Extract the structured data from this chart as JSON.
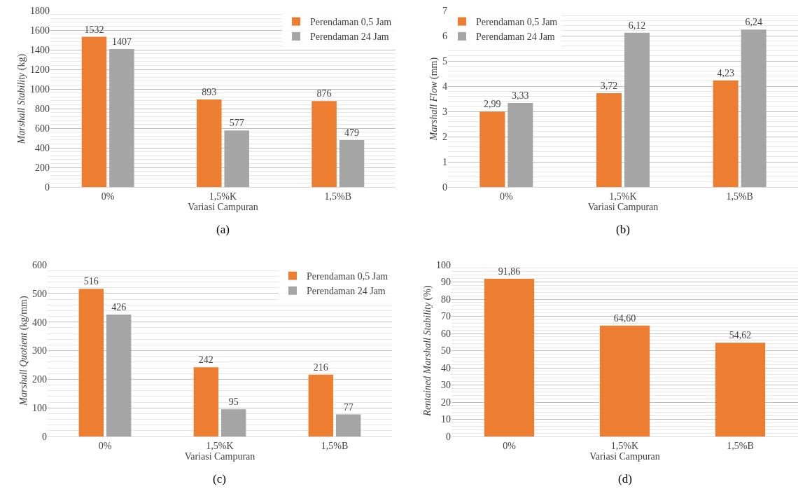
{
  "chart_data": [
    {
      "type": "bar",
      "categories": [
        "0%",
        "1,5%K",
        "1,5%B"
      ],
      "xlabel": "Variasi Campuran",
      "ylabel": "Marshall Stability (kg)",
      "annotations": [
        "(a)"
      ],
      "ylim": [
        0,
        1800
      ],
      "yticks": [
        0,
        200,
        400,
        600,
        800,
        1000,
        1200,
        1400,
        1600,
        1800
      ],
      "grid": "y",
      "legend": "top right",
      "series": [
        {
          "name": "Perendaman 0,5 Jam",
          "color": "#ed7d31",
          "values": [
            1532,
            893,
            876
          ],
          "value_labels": [
            "1532",
            "893",
            "876"
          ]
        },
        {
          "name": "Perendaman 24 Jam",
          "color": "#a5a5a5",
          "values": [
            1407,
            577,
            479
          ],
          "value_labels": [
            "1407",
            "577",
            "479"
          ]
        }
      ]
    },
    {
      "type": "bar",
      "categories": [
        "0%",
        "1,5%K",
        "1,5%B"
      ],
      "xlabel": "Variasi Campuran",
      "ylabel": "Marshall Flow (mm)",
      "annotations": [
        "(b)"
      ],
      "ylim": [
        0,
        7
      ],
      "yticks": [
        0,
        1,
        2,
        3,
        4,
        5,
        6,
        7
      ],
      "grid": "y",
      "legend": "top left",
      "series": [
        {
          "name": "Perendaman 0,5 Jam",
          "color": "#ed7d31",
          "values": [
            2.99,
            3.72,
            4.23
          ],
          "value_labels": [
            "2,99",
            "3,72",
            "4,23"
          ]
        },
        {
          "name": "Perendaman 24 Jam",
          "color": "#a5a5a5",
          "values": [
            3.33,
            6.12,
            6.24
          ],
          "value_labels": [
            "3,33",
            "6,12",
            "6,24"
          ]
        }
      ]
    },
    {
      "type": "bar",
      "categories": [
        "0%",
        "1,5%K",
        "1,5%B"
      ],
      "xlabel": "Variasi Campuran",
      "ylabel": "Marshall Quotient (kg/mm)",
      "annotations": [
        "(c)"
      ],
      "ylim": [
        0,
        600
      ],
      "yticks": [
        0,
        100,
        200,
        300,
        400,
        500,
        600
      ],
      "grid": "y",
      "legend": "top right",
      "series": [
        {
          "name": "Perendaman 0,5 Jam",
          "color": "#ed7d31",
          "values": [
            516,
            242,
            216
          ],
          "value_labels": [
            "516",
            "242",
            "216"
          ]
        },
        {
          "name": "Perendaman 24 Jam",
          "color": "#a5a5a5",
          "values": [
            426,
            95,
            77
          ],
          "value_labels": [
            "426",
            "95",
            "77"
          ]
        }
      ]
    },
    {
      "type": "bar",
      "categories": [
        "0%",
        "1,5%K",
        "1,5%B"
      ],
      "xlabel": "Variasi Campuran",
      "ylabel": "Rentained Marshall Stability (%)",
      "annotations": [
        "(d)"
      ],
      "ylim": [
        0,
        100
      ],
      "yticks": [
        0,
        10,
        20,
        30,
        40,
        50,
        60,
        70,
        80,
        90,
        100
      ],
      "grid": "y",
      "series": [
        {
          "color": "#ed7d31",
          "values": [
            91.86,
            64.6,
            54.62
          ],
          "value_labels": [
            "91,86",
            "64,60",
            "54,62"
          ]
        }
      ]
    }
  ]
}
